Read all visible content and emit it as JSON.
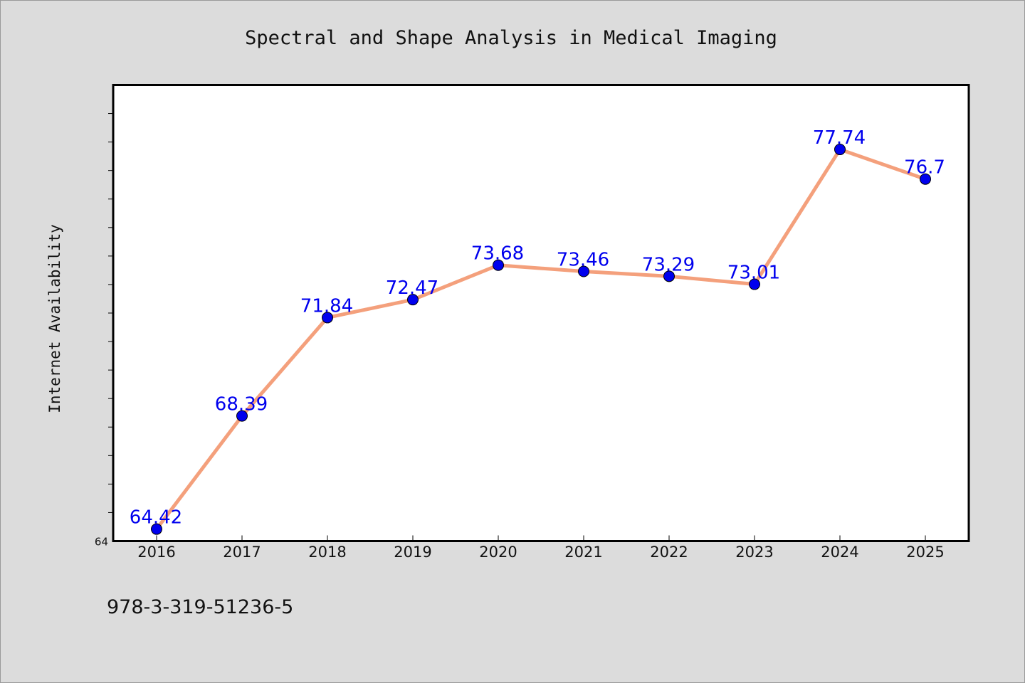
{
  "chart_data": {
    "type": "line",
    "title": "Spectral and Shape Analysis in Medical Imaging",
    "xlabel": "",
    "ylabel": "Internet Availability",
    "categories": [
      "2016",
      "2017",
      "2018",
      "2019",
      "2020",
      "2021",
      "2022",
      "2023",
      "2024",
      "2025"
    ],
    "values": [
      64.42,
      68.39,
      71.84,
      72.47,
      73.68,
      73.46,
      73.29,
      73.01,
      77.74,
      76.7
    ],
    "data_labels": [
      "64.42",
      "68.39",
      "71.84",
      "72.47",
      "73.68",
      "73.46",
      "73.29",
      "73.01",
      "77.74",
      "76.7"
    ],
    "y_tick_labels": [
      "64"
    ],
    "ylim": [
      64,
      80
    ],
    "y_minor_step": 1,
    "grid": false,
    "legend": "none",
    "line_color": "#f4a07c",
    "marker_color": "#0000ee",
    "label_color": "#0000ee"
  },
  "footer": {
    "isbn": "978-3-319-51236-5"
  }
}
